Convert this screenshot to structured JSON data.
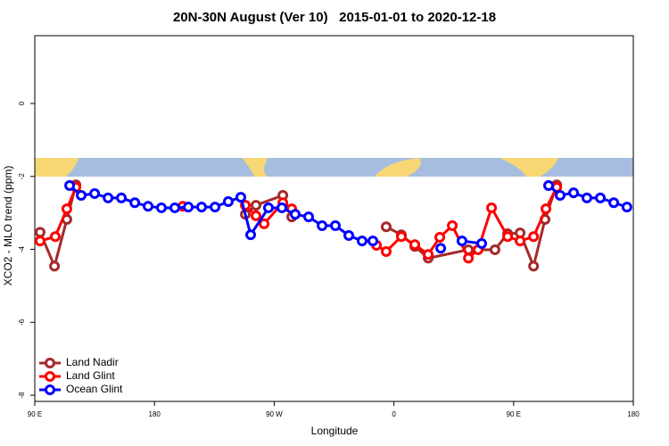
{
  "chart_data": {
    "type": "line",
    "title": "20N-30N August (Ver 10)   2015-01-01 to 2020-12-18",
    "x_label": "Longitude",
    "y_label": "XCO2 - MLO trend (ppm)",
    "xlim": [
      90,
      540
    ],
    "ylim": [
      -8.17,
      1.86
    ],
    "xticks": [
      {
        "value": 90,
        "label": "90 E"
      },
      180,
      {
        "value": 270,
        "label": "90 W"
      },
      {
        "value": 360,
        "label": "0"
      },
      {
        "value": 450,
        "label": "90 E"
      },
      {
        "value": 540,
        "label": "180"
      }
    ],
    "yticks": [
      0,
      -2,
      -4,
      -6,
      -8
    ],
    "legend": "bottom-left",
    "series": [
      {
        "name": "Land Nadir",
        "color": "#a52a2a",
        "x": [
          94,
          104.8,
          114.1,
          120.9,
          null,
          248.3,
          256.3,
          276.5,
          283.2,
          null,
          354.2,
          365.6,
          375.7,
          385.8,
          416,
          436,
          445.5,
          454.9,
          465,
          473.6,
          482.4
        ],
        "values": [
          -3.53,
          -4.46,
          -3.18,
          -2.23,
          null,
          -3.04,
          -2.79,
          -2.52,
          -3.11,
          null,
          -3.38,
          -3.6,
          -3.92,
          -4.24,
          -4.01,
          -4.01,
          -3.57,
          -3.55,
          -4.46,
          -3.18,
          -2.23
        ]
      },
      {
        "name": "Land Glint",
        "color": "#ff0000",
        "x": [
          94,
          105.4,
          114.1,
          120.9,
          null,
          201.3,
          null,
          248.3,
          256.3,
          262.4,
          276.5,
          283.2,
          null,
          346.9,
          354.2,
          365.6,
          375.7,
          385.8,
          394.5,
          403.9,
          416,
          423.3,
          433.4,
          445.5,
          454.9,
          465,
          474.3,
          482.4
        ],
        "values": [
          -3.77,
          -3.65,
          -2.89,
          -2.3,
          null,
          -2.82,
          null,
          -2.79,
          -3.08,
          -3.3,
          -2.72,
          -2.89,
          null,
          -3.89,
          -4.06,
          -3.65,
          -3.87,
          -4.14,
          -3.67,
          -3.35,
          -4.24,
          -4.01,
          -2.86,
          -3.65,
          -3.77,
          -3.65,
          -2.89,
          -2.3
        ]
      },
      {
        "name": "Ocean Glint",
        "color": "#0000ff",
        "x": [
          116.2,
          124.9,
          135,
          145.1,
          155.1,
          165.2,
          175.2,
          185.2,
          195.3,
          205.4,
          215.4,
          225.5,
          235.5,
          244.9,
          252.3,
          265.7,
          275.8,
          285.8,
          295.9,
          306,
          316,
          326.1,
          336.1,
          344.2,
          null,
          395.2,
          null,
          411.2,
          426,
          null,
          476.3,
          485,
          495.1,
          505.1,
          515.2,
          525.3,
          535.2
        ],
        "values": [
          -2.25,
          -2.52,
          -2.47,
          -2.59,
          -2.59,
          -2.72,
          -2.82,
          -2.86,
          -2.86,
          -2.84,
          -2.84,
          -2.84,
          -2.69,
          -2.57,
          -3.6,
          -2.86,
          -2.86,
          -3.04,
          -3.11,
          -3.35,
          -3.35,
          -3.62,
          -3.77,
          -3.77,
          null,
          -3.97,
          null,
          -3.77,
          -3.84,
          null,
          -2.25,
          -2.52,
          -2.45,
          -2.59,
          -2.59,
          -2.72,
          -2.84
        ]
      }
    ]
  }
}
